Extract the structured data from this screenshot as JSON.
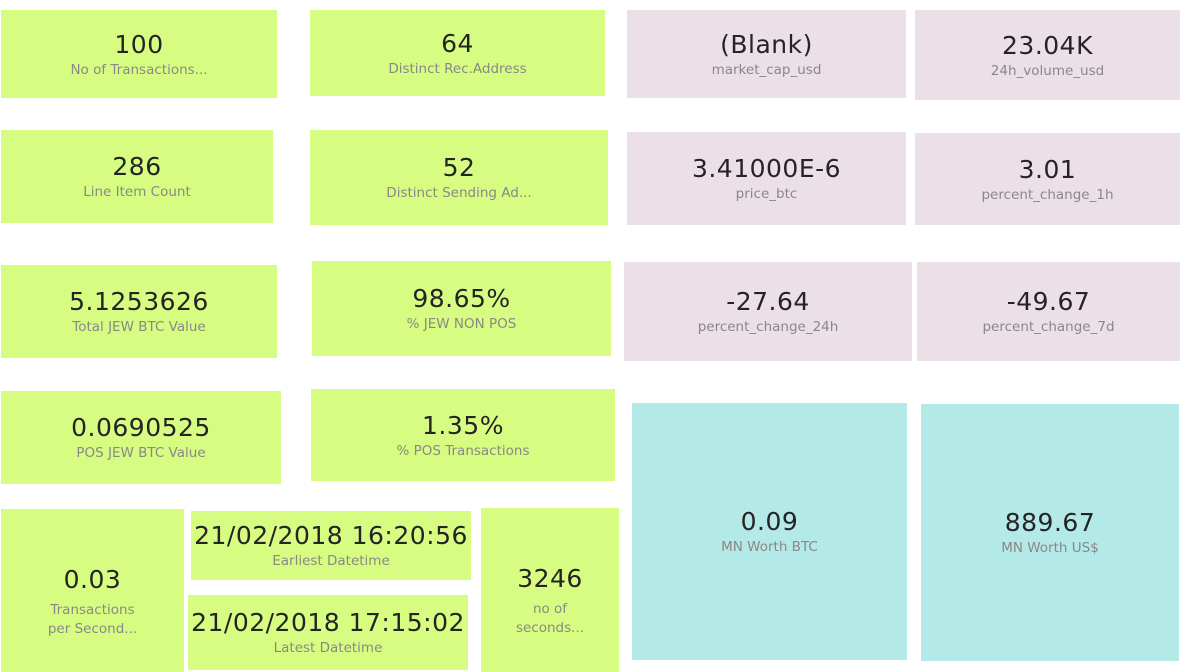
{
  "cards": {
    "no_of_transactions": {
      "value": "100",
      "label": "No of Transactions..."
    },
    "distinct_rec_address": {
      "value": "64",
      "label": "Distinct Rec.Address"
    },
    "market_cap_usd": {
      "value": "(Blank)",
      "label": "market_cap_usd"
    },
    "volume_24h_usd": {
      "value": "23.04K",
      "label": "24h_volume_usd"
    },
    "line_item_count": {
      "value": "286",
      "label": "Line Item Count"
    },
    "distinct_sending_address": {
      "value": "52",
      "label": "Distinct Sending Ad..."
    },
    "price_btc": {
      "value": "3.41000E-6",
      "label": "price_btc"
    },
    "percent_change_1h": {
      "value": "3.01",
      "label": "percent_change_1h"
    },
    "total_jew_btc_value": {
      "value": "5.1253626",
      "label": "Total JEW BTC Value"
    },
    "pct_jew_non_pos": {
      "value": "98.65%",
      "label": "% JEW NON POS"
    },
    "percent_change_24h": {
      "value": "-27.64",
      "label": "percent_change_24h"
    },
    "percent_change_7d": {
      "value": "-49.67",
      "label": "percent_change_7d"
    },
    "pos_jew_btc_value": {
      "value": "0.0690525",
      "label": "POS JEW BTC Value"
    },
    "pct_pos_transactions": {
      "value": "1.35%",
      "label": "% POS Transactions"
    },
    "mn_worth_btc": {
      "value": "0.09",
      "label": "MN Worth BTC"
    },
    "mn_worth_usd": {
      "value": "889.67",
      "label": "MN Worth US$"
    },
    "transactions_per_second": {
      "value": "0.03",
      "label": "Transactions\nper Second..."
    },
    "earliest_datetime": {
      "value": "21/02/2018 16:20:56",
      "label": "Earliest Datetime"
    },
    "latest_datetime": {
      "value": "21/02/2018 17:15:02",
      "label": "Latest Datetime"
    },
    "no_of_seconds": {
      "value": "3246",
      "label": "no of\nseconds..."
    }
  },
  "colors": {
    "green_card": "#d6fd81",
    "pink_card": "#ebe0e8",
    "cyan_card": "#b3e9e7"
  }
}
